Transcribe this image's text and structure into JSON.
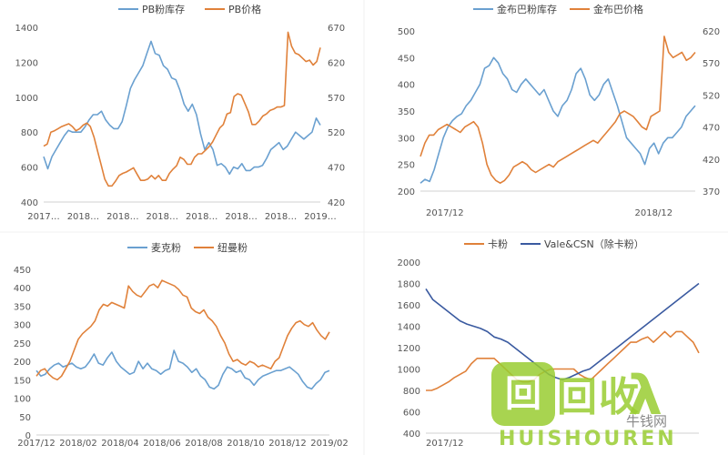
{
  "chart_data": [
    {
      "type": "line",
      "legend_position": "top",
      "x_ticks": [
        "2017…",
        "2018…",
        "2018…",
        "2018…",
        "2018…",
        "2018…",
        "2018…",
        "2019…"
      ],
      "yleft_ticks": [
        "400",
        "600",
        "800",
        "1000",
        "1200",
        "1400"
      ],
      "yright_ticks": [
        "420",
        "470",
        "520",
        "570",
        "620",
        "670"
      ],
      "ylim_left": [
        400,
        1400
      ],
      "ylim_right": [
        420,
        670
      ],
      "series": [
        {
          "name": "PB粉库存",
          "axis": "left",
          "color": "#6aa0d0",
          "values": [
            660,
            590,
            660,
            700,
            740,
            780,
            810,
            800,
            800,
            800,
            830,
            870,
            900,
            900,
            920,
            870,
            840,
            820,
            820,
            860,
            950,
            1050,
            1100,
            1140,
            1180,
            1250,
            1320,
            1250,
            1240,
            1180,
            1160,
            1110,
            1100,
            1040,
            960,
            920,
            960,
            900,
            790,
            700,
            740,
            700,
            610,
            620,
            600,
            560,
            600,
            590,
            620,
            580,
            580,
            600,
            600,
            610,
            650,
            700,
            720,
            740,
            700,
            720,
            760,
            800,
            780,
            760,
            780,
            800,
            880,
            840
          ]
        },
        {
          "name": "PB价格",
          "axis": "right",
          "color": "#e0813a",
          "values": [
            500,
            503,
            520,
            522,
            525,
            528,
            530,
            532,
            528,
            522,
            525,
            530,
            533,
            528,
            513,
            493,
            473,
            453,
            443,
            443,
            450,
            458,
            461,
            463,
            466,
            469,
            460,
            451,
            451,
            453,
            458,
            453,
            458,
            451,
            451,
            461,
            467,
            472,
            484,
            481,
            474,
            474,
            484,
            489,
            489,
            494,
            499,
            506,
            516,
            526,
            531,
            546,
            548,
            571,
            575,
            573,
            561,
            549,
            531,
            531,
            536,
            543,
            546,
            551,
            553,
            556,
            556,
            558,
            663,
            643,
            633,
            631,
            626,
            621,
            623,
            616,
            621,
            641
          ]
        }
      ]
    },
    {
      "type": "line",
      "legend_position": "top",
      "x_ticks": [
        "2017/12",
        "2018/12"
      ],
      "yleft_ticks": [
        "200",
        "250",
        "300",
        "350",
        "400",
        "450",
        "500"
      ],
      "yright_ticks": [
        "370",
        "420",
        "470",
        "520",
        "570",
        "620"
      ],
      "ylim_left": [
        200,
        500
      ],
      "ylim_right": [
        370,
        620
      ],
      "series": [
        {
          "name": "金布巴粉库存",
          "axis": "left",
          "color": "#6aa0d0",
          "values": [
            215,
            222,
            218,
            240,
            270,
            300,
            320,
            332,
            340,
            345,
            360,
            370,
            385,
            400,
            430,
            435,
            450,
            440,
            420,
            410,
            390,
            385,
            400,
            410,
            400,
            390,
            380,
            390,
            370,
            350,
            340,
            360,
            370,
            390,
            420,
            430,
            410,
            380,
            370,
            380,
            400,
            410,
            385,
            360,
            330,
            300,
            290,
            280,
            270,
            250,
            280,
            290,
            270,
            290,
            300,
            300,
            310,
            320,
            340,
            350,
            360
          ]
        },
        {
          "name": "金布巴价格",
          "axis": "left",
          "color": "#e0813a",
          "values": [
            265,
            290,
            305,
            305,
            315,
            320,
            325,
            320,
            315,
            310,
            320,
            325,
            330,
            320,
            290,
            250,
            230,
            220,
            215,
            220,
            230,
            245,
            250,
            255,
            250,
            240,
            235,
            240,
            245,
            250,
            245,
            255,
            260,
            265,
            270,
            275,
            280,
            285,
            290,
            295,
            290,
            300,
            310,
            320,
            330,
            345,
            350,
            345,
            340,
            330,
            320,
            315,
            340,
            345,
            350,
            490,
            460,
            450,
            455,
            460,
            445,
            450,
            460
          ]
        }
      ]
    },
    {
      "type": "line",
      "legend_position": "top",
      "x_ticks": [
        "2017/12",
        "2018/02",
        "2018/04",
        "2018/06",
        "2018/08",
        "2018/10",
        "2018/12",
        "2019/02"
      ],
      "y_ticks": [
        "0",
        "50",
        "100",
        "150",
        "200",
        "250",
        "300",
        "350",
        "400",
        "450"
      ],
      "ylim": [
        0,
        450
      ],
      "series": [
        {
          "name": "麦克粉",
          "color": "#6aa0d0",
          "values": [
            175,
            160,
            165,
            180,
            190,
            195,
            185,
            190,
            195,
            185,
            180,
            185,
            200,
            220,
            195,
            190,
            210,
            225,
            200,
            185,
            175,
            165,
            170,
            200,
            180,
            195,
            180,
            175,
            165,
            175,
            180,
            230,
            200,
            195,
            185,
            170,
            180,
            160,
            150,
            130,
            125,
            135,
            165,
            185,
            180,
            170,
            175,
            155,
            150,
            135,
            150,
            160,
            165,
            170,
            175,
            175,
            180,
            185,
            175,
            165,
            145,
            130,
            125,
            140,
            150,
            170,
            175
          ]
        },
        {
          "name": "纽曼粉",
          "color": "#e0813a",
          "values": [
            160,
            175,
            180,
            165,
            155,
            150,
            160,
            180,
            200,
            230,
            260,
            275,
            285,
            295,
            310,
            340,
            355,
            350,
            360,
            355,
            350,
            345,
            405,
            390,
            380,
            375,
            390,
            405,
            410,
            400,
            420,
            415,
            410,
            405,
            395,
            380,
            375,
            345,
            335,
            330,
            340,
            320,
            310,
            295,
            270,
            250,
            220,
            200,
            205,
            195,
            190,
            200,
            195,
            185,
            190,
            185,
            180,
            200,
            210,
            240,
            270,
            290,
            305,
            310,
            300,
            295,
            305,
            285,
            270,
            260,
            280
          ]
        }
      ]
    },
    {
      "type": "line",
      "legend_position": "top",
      "x_ticks": [
        "2017/12"
      ],
      "y_ticks": [
        "400",
        "600",
        "800",
        "1000",
        "1200",
        "1400",
        "1600",
        "1800",
        "2000"
      ],
      "ylim": [
        400,
        2000
      ],
      "series": [
        {
          "name": "卡粉",
          "color": "#e0813a",
          "values": [
            800,
            800,
            820,
            850,
            880,
            920,
            950,
            980,
            1050,
            1100,
            1100,
            1100,
            1100,
            1050,
            1000,
            950,
            900,
            880,
            880,
            900,
            950,
            980,
            1000,
            1000,
            1000,
            1000,
            1000,
            950,
            920,
            900,
            950,
            1000,
            1050,
            1100,
            1150,
            1200,
            1250,
            1250,
            1280,
            1300,
            1250,
            1300,
            1350,
            1300,
            1350,
            1350,
            1300,
            1250,
            1150
          ]
        },
        {
          "name": "Vale&CSN（除卡粉）",
          "color": "#3a5aa0",
          "values": [
            1750,
            1650,
            1600,
            1550,
            1500,
            1450,
            1420,
            1400,
            1380,
            1350,
            1300,
            1280,
            1250,
            1200,
            1150,
            1100,
            1050,
            1000,
            950,
            920,
            900,
            920,
            950,
            980,
            1000,
            1050,
            1100,
            1150,
            1200,
            1250,
            1300,
            1350,
            1400,
            1450,
            1500,
            1550,
            1600,
            1650,
            1700,
            1750,
            1800
          ]
        }
      ]
    }
  ],
  "watermark": {
    "badge_glyph": "回",
    "brand": "回收",
    "pinyin": "HUISHOUREN",
    "social": "牛钱网"
  }
}
